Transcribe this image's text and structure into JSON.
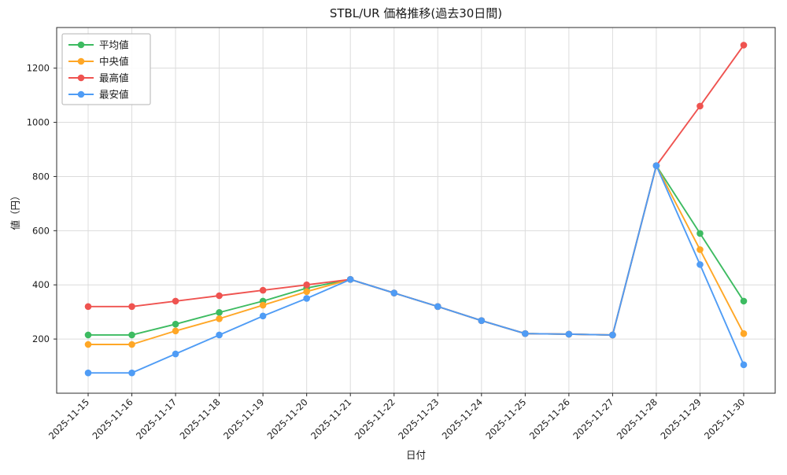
{
  "chart_data": {
    "type": "line",
    "title": "STBL/UR 価格推移(過去30日間)",
    "xlabel": "日付",
    "ylabel": "値（円）",
    "ylim": [
      0,
      1350
    ],
    "yticks": [
      200,
      400,
      600,
      800,
      1000,
      1200
    ],
    "grid": true,
    "legend_position": "upper left",
    "categories": [
      "2025-11-15",
      "2025-11-16",
      "2025-11-17",
      "2025-11-18",
      "2025-11-19",
      "2025-11-20",
      "2025-11-21",
      "2025-11-22",
      "2025-11-23",
      "2025-11-24",
      "2025-11-25",
      "2025-11-26",
      "2025-11-27",
      "2025-11-28",
      "2025-11-29",
      "2025-11-30"
    ],
    "series": [
      {
        "name": "平均値",
        "color": "#3dbb61",
        "values": [
          215,
          215,
          255,
          298,
          340,
          388,
          420,
          370,
          320,
          268,
          220,
          218,
          215,
          840,
          590,
          340
        ]
      },
      {
        "name": "中央値",
        "color": "#ffa726",
        "values": [
          180,
          180,
          230,
          275,
          325,
          375,
          420,
          370,
          320,
          268,
          220,
          218,
          215,
          840,
          530,
          220
        ]
      },
      {
        "name": "最高値",
        "color": "#ef5350",
        "values": [
          320,
          320,
          340,
          360,
          380,
          400,
          420,
          370,
          320,
          268,
          220,
          218,
          215,
          840,
          1060,
          1285
        ]
      },
      {
        "name": "最安値",
        "color": "#4f9cf5",
        "values": [
          75,
          75,
          145,
          215,
          285,
          350,
          420,
          370,
          320,
          268,
          220,
          218,
          215,
          840,
          475,
          105
        ]
      }
    ]
  }
}
